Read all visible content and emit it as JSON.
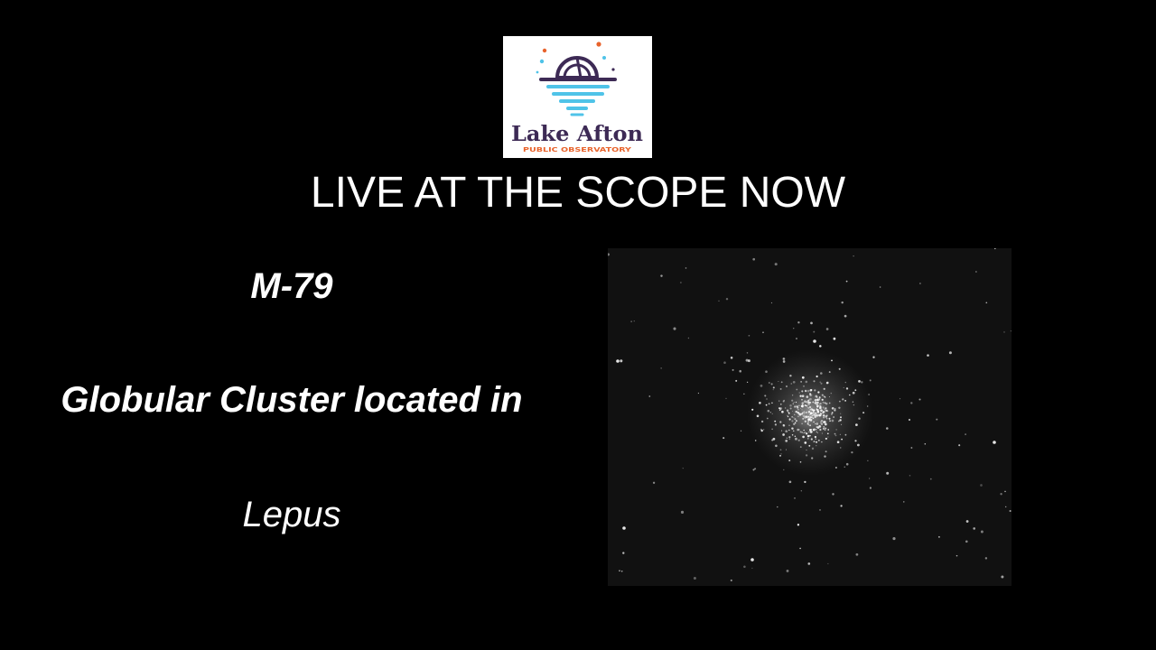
{
  "logo": {
    "name_text": "Lake Afton",
    "subtitle_text": "PUBLIC OBSERVATORY",
    "colors": {
      "purple": "#3d2a55",
      "cyan": "#4fc3e8",
      "orange": "#e8632c",
      "navy": "#2f2a6b"
    },
    "icon": "observatory-dome-over-water-logo"
  },
  "headline": "LIVE AT THE SCOPE NOW",
  "object": {
    "name": "M-79",
    "description": "Globular Cluster located in",
    "constellation": "Lepus"
  },
  "photo": {
    "subject": "globular-cluster-image"
  },
  "colors": {
    "background": "#000000",
    "text": "#ffffff",
    "photo_background": "#111111"
  }
}
